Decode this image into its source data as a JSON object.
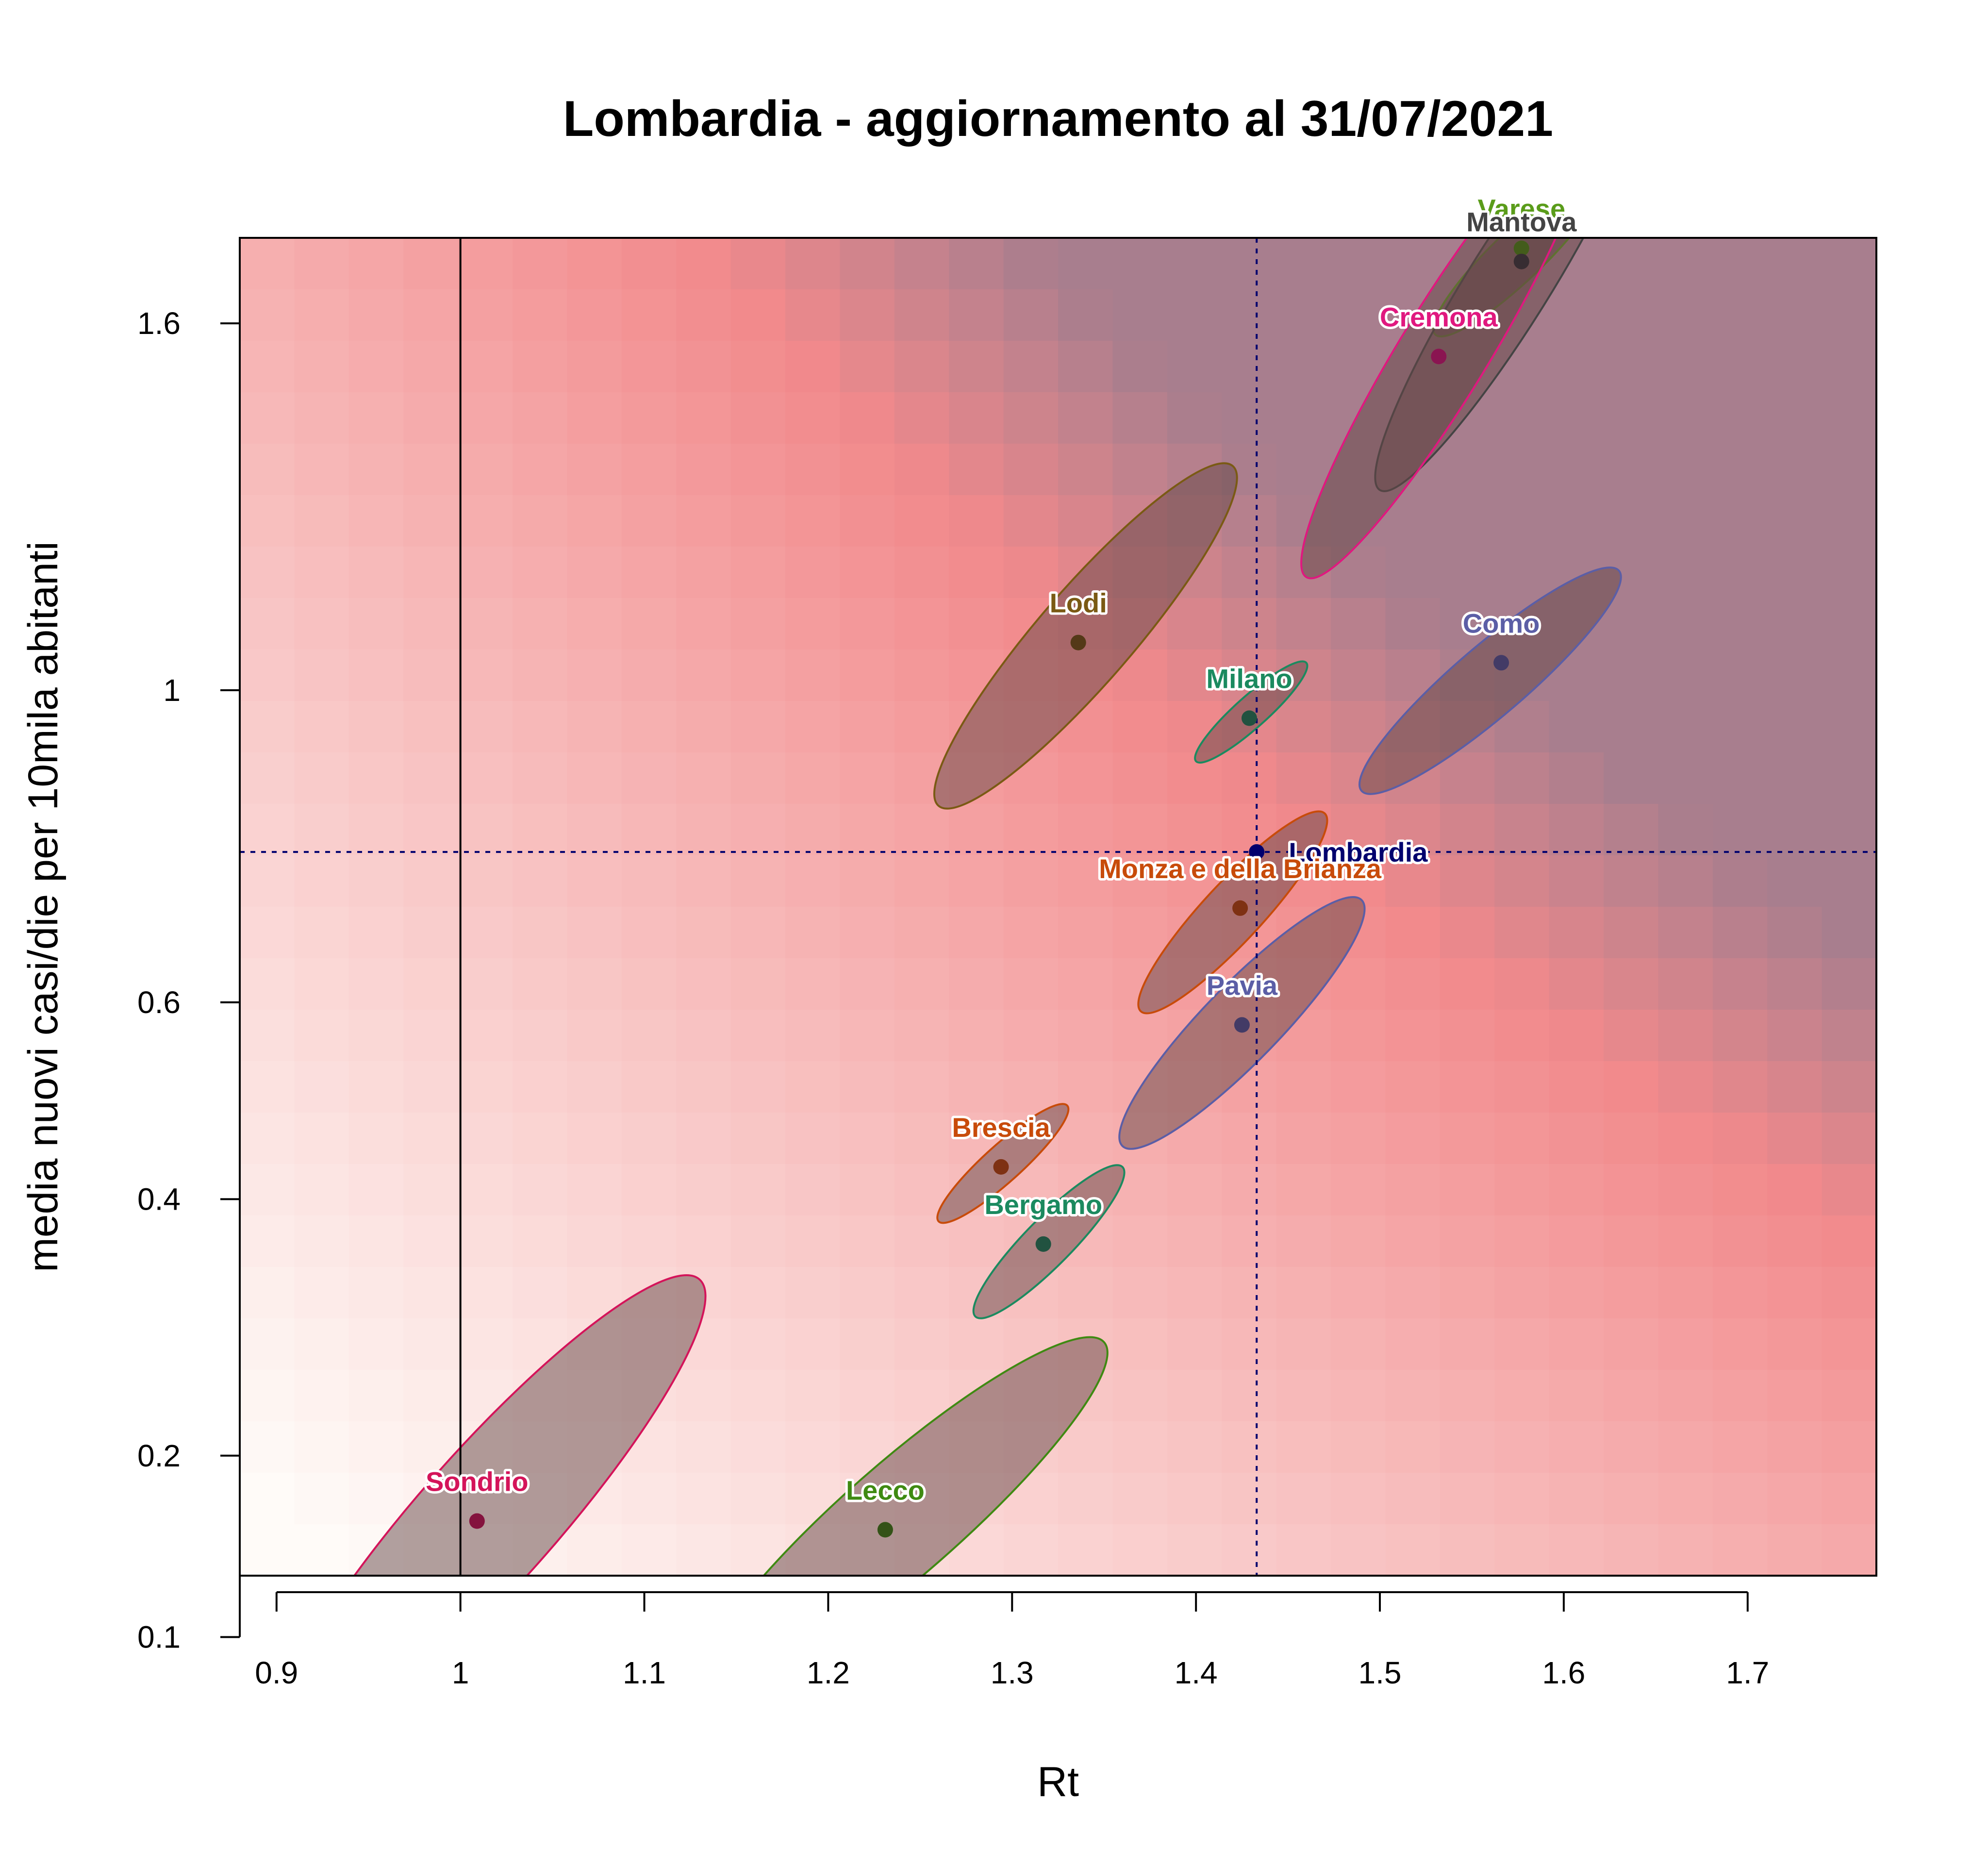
{
  "chart_data": {
    "type": "scatter",
    "title": "Lombardia - aggiornamento al 31/07/2021",
    "xlabel": "Rt",
    "ylabel": "media nuovi casi/die per 10mila abitanti",
    "xlim": [
      0.88,
      1.77
    ],
    "ylim": [
      0.13,
      1.76
    ],
    "y_scale": "sqrt",
    "x_ticks": [
      "0.9",
      "1",
      "1.1",
      "1.2",
      "1.3",
      "1.4",
      "1.5",
      "1.6",
      "1.7"
    ],
    "y_ticks": [
      "0.1",
      "0.2",
      "0.4",
      "0.6",
      "1",
      "1.6"
    ],
    "grid": false,
    "background": "heatmap from light (low Rt, low incidence) to red/purple (high Rt, high incidence)",
    "reference_lines": {
      "x": 1.0,
      "lombardia_x": 1.433,
      "lombardia_y": 0.78
    },
    "points": [
      {
        "label": "Varese",
        "x": 1.577,
        "y": 1.74,
        "color": "#5a9c1a",
        "ellipse": {
          "x_range": [
            1.53,
            1.62
          ],
          "y_range": [
            1.58,
            1.88
          ]
        }
      },
      {
        "label": "Mantova",
        "x": 1.577,
        "y": 1.715,
        "color": "#444444",
        "ellipse": {
          "x_range": [
            1.5,
            1.64
          ],
          "y_range": [
            1.31,
            2.08
          ]
        }
      },
      {
        "label": "Cremona",
        "x": 1.532,
        "y": 1.54,
        "color": "#e0187f",
        "ellipse": {
          "x_range": [
            1.46,
            1.61
          ],
          "y_range": [
            1.17,
            1.98
          ]
        }
      },
      {
        "label": "Lodi",
        "x": 1.336,
        "y": 1.07,
        "color": "#7a5a14",
        "ellipse": {
          "x_range": [
            1.26,
            1.42
          ],
          "y_range": [
            0.84,
            1.35
          ]
        }
      },
      {
        "label": "Como",
        "x": 1.566,
        "y": 1.04,
        "color": "#5b5ea6",
        "ellipse": {
          "x_range": [
            1.49,
            1.63
          ],
          "y_range": [
            0.86,
            1.18
          ]
        }
      },
      {
        "label": "Milano",
        "x": 1.429,
        "y": 0.96,
        "color": "#1b8a5f",
        "ellipse": {
          "x_range": [
            1.4,
            1.46
          ],
          "y_range": [
            0.9,
            1.04
          ]
        }
      },
      {
        "label": "Lombardia",
        "x": 1.433,
        "y": 0.78,
        "color": "#00006e",
        "ellipse": null
      },
      {
        "label": "Monza e della Brianza",
        "x": 1.424,
        "y": 0.71,
        "color": "#c84b0a",
        "ellipse": {
          "x_range": [
            1.37,
            1.47
          ],
          "y_range": [
            0.59,
            0.83
          ]
        }
      },
      {
        "label": "Pavia",
        "x": 1.425,
        "y": 0.575,
        "color": "#5b5ea6",
        "ellipse": {
          "x_range": [
            1.36,
            1.49
          ],
          "y_range": [
            0.45,
            0.72
          ]
        }
      },
      {
        "label": "Brescia",
        "x": 1.294,
        "y": 0.43,
        "color": "#c84b0a",
        "ellipse": {
          "x_range": [
            1.26,
            1.33
          ],
          "y_range": [
            0.38,
            0.49
          ]
        }
      },
      {
        "label": "Bergamo",
        "x": 1.317,
        "y": 0.36,
        "color": "#1b8a5f",
        "ellipse": {
          "x_range": [
            1.28,
            1.36
          ],
          "y_range": [
            0.3,
            0.43
          ]
        }
      },
      {
        "label": "Sondrio",
        "x": 1.009,
        "y": 0.16,
        "color": "#d4145a",
        "ellipse": {
          "x_range": [
            0.9,
            1.13
          ],
          "y_range": [
            0.053,
            0.33
          ]
        }
      },
      {
        "label": "Lecco",
        "x": 1.231,
        "y": 0.155,
        "color": "#3f8a12",
        "ellipse": {
          "x_range": [
            1.13,
            1.35
          ],
          "y_range": [
            0.075,
            0.28
          ]
        }
      }
    ]
  }
}
